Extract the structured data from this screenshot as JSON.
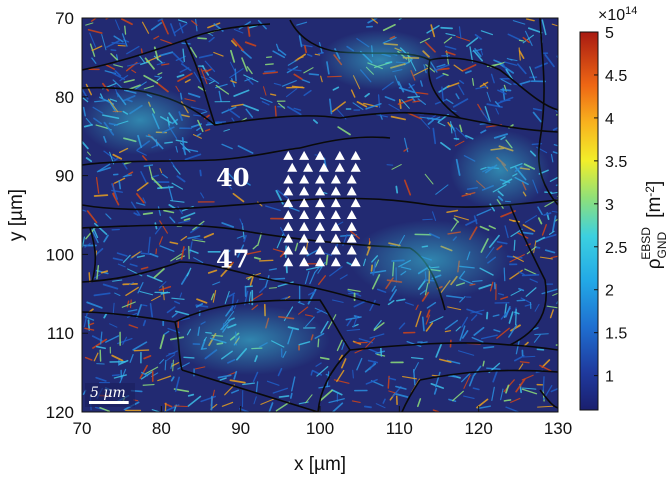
{
  "chart_data": {
    "type": "heatmap",
    "title": "",
    "xlabel": "x [µm]",
    "ylabel": "y [µm]",
    "xlim": [
      70,
      130
    ],
    "ylim": [
      70,
      120
    ],
    "y_reversed": true,
    "x_ticks": [
      70,
      80,
      90,
      100,
      110,
      120,
      130
    ],
    "y_ticks": [
      70,
      80,
      90,
      100,
      110,
      120
    ],
    "grid": false,
    "colorbar": {
      "label_main": "ρ",
      "label_sup": "EBSD",
      "label_sub": "GND",
      "label_unit": "[m",
      "label_unit_exp": "-2",
      "label_unit_close": "]",
      "range": [
        0.6,
        5
      ],
      "ticks": [
        1,
        1.5,
        2,
        2.5,
        3,
        3.5,
        4,
        4.5,
        5
      ],
      "multiplier_base": "×10",
      "multiplier_exp": "14",
      "colormap": "jet",
      "placement": "right"
    },
    "annotations": [
      {
        "text": "40",
        "x": 89,
        "y": 90.2
      },
      {
        "text": "47",
        "x": 89,
        "y": 100.5
      }
    ],
    "indent_markers": {
      "shape": "triangle",
      "color": "#ffffff",
      "rows": [
        {
          "y": 87.5,
          "x": [
            96,
            98,
            100,
            102.5,
            104.5
          ]
        },
        {
          "y": 89,
          "x": [
            96.5,
            98.5,
            100.5,
            102.5,
            104.5
          ]
        },
        {
          "y": 90.5,
          "x": [
            96,
            98,
            100,
            102,
            104
          ]
        },
        {
          "y": 92,
          "x": [
            96,
            98,
            100,
            102,
            104
          ]
        },
        {
          "y": 93.5,
          "x": [
            96,
            98,
            100,
            102,
            104.5
          ]
        },
        {
          "y": 95,
          "x": [
            96,
            98,
            100,
            102,
            104
          ]
        },
        {
          "y": 96.5,
          "x": [
            96,
            98,
            100,
            102,
            104
          ]
        },
        {
          "y": 98,
          "x": [
            96,
            98,
            100,
            102,
            104
          ]
        },
        {
          "y": 99.5,
          "x": [
            96,
            98,
            100,
            102,
            104
          ]
        },
        {
          "y": 101,
          "x": [
            96,
            98,
            100,
            102,
            104.5
          ]
        }
      ]
    },
    "scale_bar": {
      "label": "5 μm",
      "length": 5
    }
  }
}
